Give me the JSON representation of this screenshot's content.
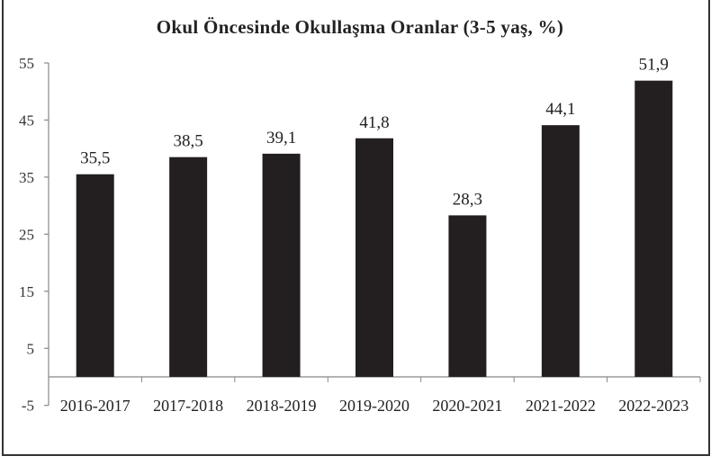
{
  "chart_data": {
    "type": "bar",
    "title": "Okul Öncesinde Okullaşma Oranlar (3-5 yaş, %)",
    "xlabel": "",
    "ylabel": "",
    "categories": [
      "2016-2017",
      "2017-2018",
      "2018-2019",
      "2019-2020",
      "2020-2021",
      "2021-2022",
      "2022-2023"
    ],
    "values": [
      35.5,
      38.5,
      39.1,
      41.8,
      28.3,
      44.1,
      51.9
    ],
    "value_labels": [
      "35,5",
      "38,5",
      "39,1",
      "41,8",
      "28,3",
      "44,1",
      "51,9"
    ],
    "yticks": [
      -5,
      5,
      15,
      25,
      35,
      45,
      55
    ],
    "ylim": [
      -5,
      55
    ],
    "grid": false,
    "legend": null,
    "bar_color": "#231f20"
  }
}
